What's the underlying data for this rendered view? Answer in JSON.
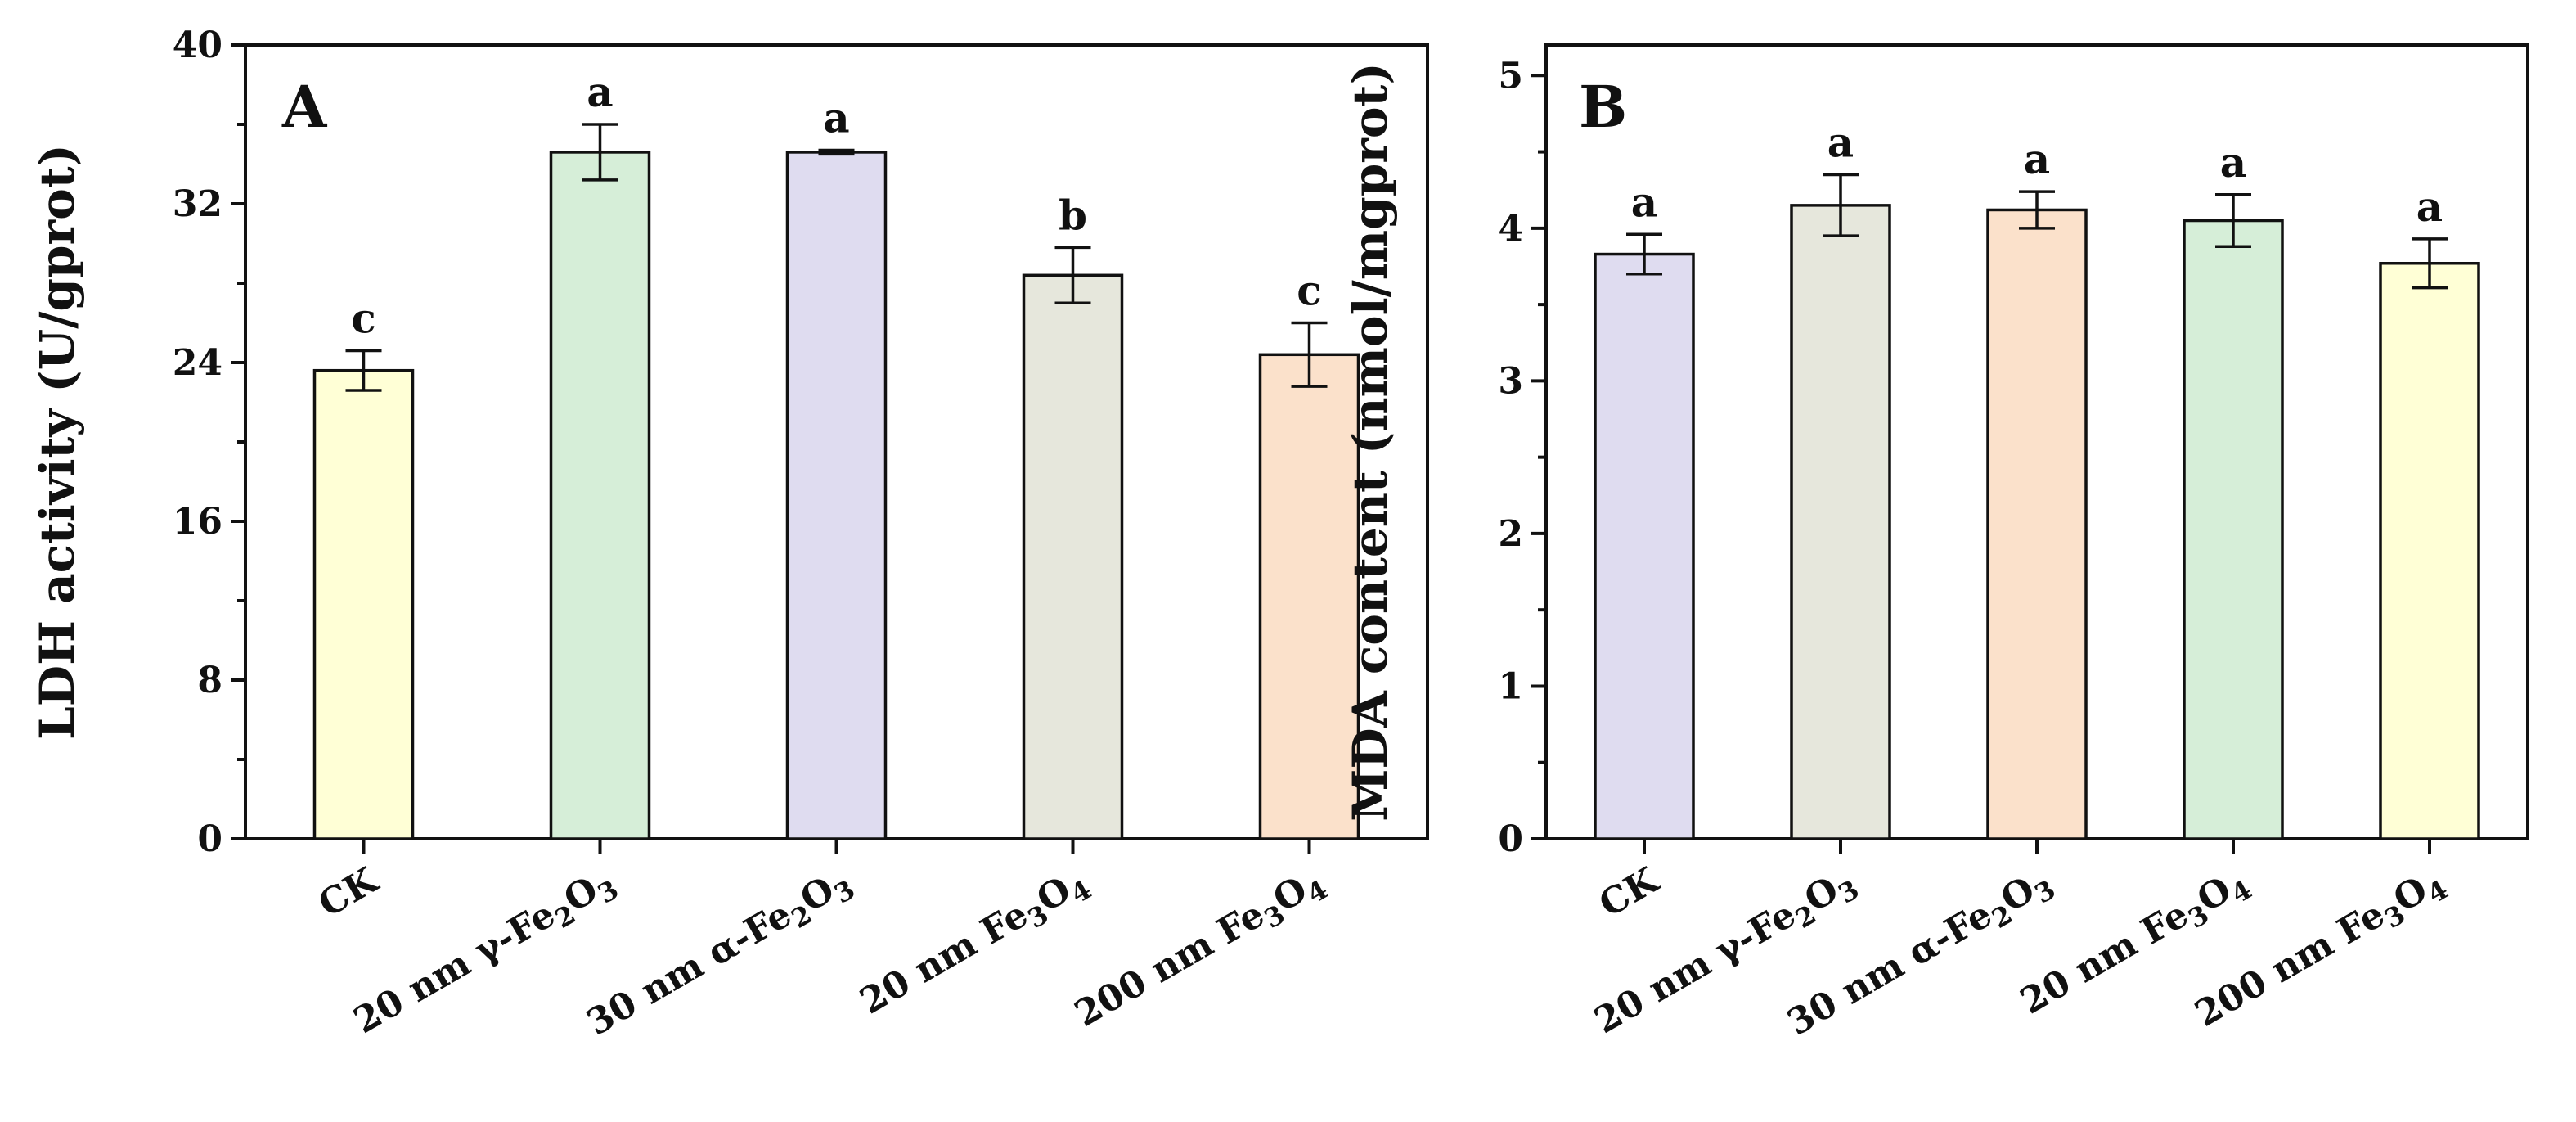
{
  "chart_data": [
    {
      "type": "bar",
      "panel": "A",
      "title": "",
      "xlabel": "",
      "ylabel": "LDH activity (U/gprot)",
      "ylim": [
        0,
        40
      ],
      "yticks": [
        0,
        8,
        16,
        24,
        32,
        40
      ],
      "grid": false,
      "categories": [
        {
          "pre": "CK",
          "segments": []
        },
        {
          "pre": "20 nm γ-Fe",
          "segments": [
            {
              "t": "2",
              "sub": true
            },
            {
              "t": "O",
              "sub": false
            },
            {
              "t": "3",
              "sub": true
            }
          ]
        },
        {
          "pre": "30 nm α-Fe",
          "segments": [
            {
              "t": "2",
              "sub": true
            },
            {
              "t": "O",
              "sub": false
            },
            {
              "t": "3",
              "sub": true
            }
          ]
        },
        {
          "pre": "20 nm Fe",
          "segments": [
            {
              "t": "3",
              "sub": true
            },
            {
              "t": "O",
              "sub": false
            },
            {
              "t": "4",
              "sub": true
            }
          ]
        },
        {
          "pre": "200 nm Fe",
          "segments": [
            {
              "t": "3",
              "sub": true
            },
            {
              "t": "O",
              "sub": false
            },
            {
              "t": "4",
              "sub": true
            }
          ]
        }
      ],
      "values": [
        23.6,
        34.6,
        34.6,
        28.4,
        24.4
      ],
      "errors": [
        1.0,
        1.4,
        0.1,
        1.4,
        1.6
      ],
      "significance": [
        "c",
        "a",
        "a",
        "b",
        "c"
      ],
      "colors": [
        "#ffffd6",
        "#d6eed8",
        "#dfdcf0",
        "#e6e7dc",
        "#fbe1cb"
      ]
    },
    {
      "type": "bar",
      "panel": "B",
      "title": "",
      "xlabel": "",
      "ylabel": "MDA content (nmol/mgprot)",
      "ylim": [
        0,
        5.2
      ],
      "yticks": [
        0,
        1,
        2,
        3,
        4,
        5
      ],
      "grid": false,
      "categories": [
        {
          "pre": "CK",
          "segments": []
        },
        {
          "pre": "20 nm γ-Fe",
          "segments": [
            {
              "t": "2",
              "sub": true
            },
            {
              "t": "O",
              "sub": false
            },
            {
              "t": "3",
              "sub": true
            }
          ]
        },
        {
          "pre": "30 nm α-Fe",
          "segments": [
            {
              "t": "2",
              "sub": true
            },
            {
              "t": "O",
              "sub": false
            },
            {
              "t": "3",
              "sub": true
            }
          ]
        },
        {
          "pre": "20 nm Fe",
          "segments": [
            {
              "t": "3",
              "sub": true
            },
            {
              "t": "O",
              "sub": false
            },
            {
              "t": "4",
              "sub": true
            }
          ]
        },
        {
          "pre": "200 nm Fe",
          "segments": [
            {
              "t": "3",
              "sub": true
            },
            {
              "t": "O",
              "sub": false
            },
            {
              "t": "4",
              "sub": true
            }
          ]
        }
      ],
      "values": [
        3.83,
        4.15,
        4.12,
        4.05,
        3.77
      ],
      "errors": [
        0.13,
        0.2,
        0.12,
        0.17,
        0.16
      ],
      "significance": [
        "a",
        "a",
        "a",
        "a",
        "a"
      ],
      "colors": [
        "#dfdcf0",
        "#e6e7dc",
        "#fbe1cb",
        "#d6eed8",
        "#ffffd6"
      ]
    }
  ]
}
